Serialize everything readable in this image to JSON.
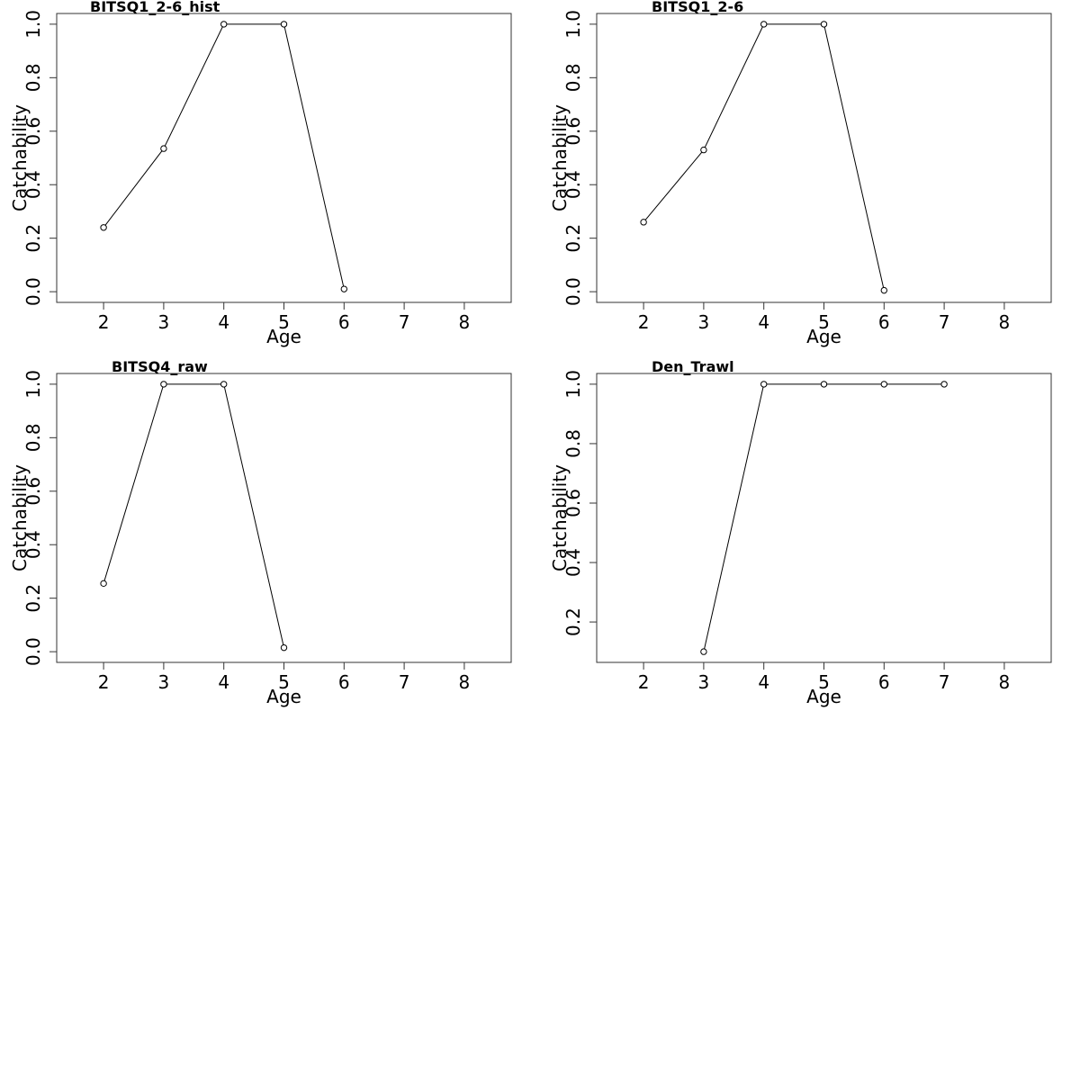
{
  "chart_data": [
    {
      "type": "line",
      "title": "BITSQ1_2-6_hist",
      "xlabel": "Age",
      "ylabel": "Catchability",
      "x_ticks": [
        2,
        3,
        4,
        5,
        6,
        7,
        8
      ],
      "y_ticks": [
        0.0,
        0.2,
        0.4,
        0.6,
        0.8,
        1.0
      ],
      "y_tick_labels": [
        "0.0",
        "0.2",
        "0.4",
        "0.6",
        "0.8",
        "1.0"
      ],
      "xlim": [
        1.22,
        8.78
      ],
      "ylim": [
        -0.04,
        1.04
      ],
      "x": [
        2,
        3,
        4,
        5,
        6
      ],
      "y": [
        0.24,
        0.535,
        1.0,
        1.0,
        0.01
      ]
    },
    {
      "type": "line",
      "title": "BITSQ1_2-6",
      "xlabel": "Age",
      "ylabel": "Catchability",
      "x_ticks": [
        2,
        3,
        4,
        5,
        6,
        7,
        8
      ],
      "y_ticks": [
        0.0,
        0.2,
        0.4,
        0.6,
        0.8,
        1.0
      ],
      "y_tick_labels": [
        "0.0",
        "0.2",
        "0.4",
        "0.6",
        "0.8",
        "1.0"
      ],
      "xlim": [
        1.22,
        8.78
      ],
      "ylim": [
        -0.04,
        1.04
      ],
      "x": [
        2,
        3,
        4,
        5,
        6
      ],
      "y": [
        0.26,
        0.53,
        1.0,
        1.0,
        0.005
      ]
    },
    {
      "type": "line",
      "title": "BITSQ4_raw",
      "xlabel": "Age",
      "ylabel": "Catchability",
      "x_ticks": [
        2,
        3,
        4,
        5,
        6,
        7,
        8
      ],
      "y_ticks": [
        0.0,
        0.2,
        0.4,
        0.6,
        0.8,
        1.0
      ],
      "y_tick_labels": [
        "0.0",
        "0.2",
        "0.4",
        "0.6",
        "0.8",
        "1.0"
      ],
      "xlim": [
        1.22,
        8.78
      ],
      "ylim": [
        -0.04,
        1.04
      ],
      "x": [
        2,
        3,
        4,
        5
      ],
      "y": [
        0.255,
        1.0,
        1.0,
        0.015
      ]
    },
    {
      "type": "line",
      "title": "Den_Trawl",
      "xlabel": "Age",
      "ylabel": "Catchability",
      "x_ticks": [
        2,
        3,
        4,
        5,
        6,
        7,
        8
      ],
      "y_ticks": [
        0.2,
        0.4,
        0.6,
        0.8,
        1.0
      ],
      "y_tick_labels": [
        "0.2",
        "0.4",
        "0.6",
        "0.8",
        "1.0"
      ],
      "xlim": [
        1.22,
        8.78
      ],
      "ylim": [
        0.064,
        1.036
      ],
      "x": [
        3,
        4,
        5,
        6,
        7
      ],
      "y": [
        0.1,
        1.0,
        1.0,
        1.0,
        1.0
      ]
    }
  ]
}
